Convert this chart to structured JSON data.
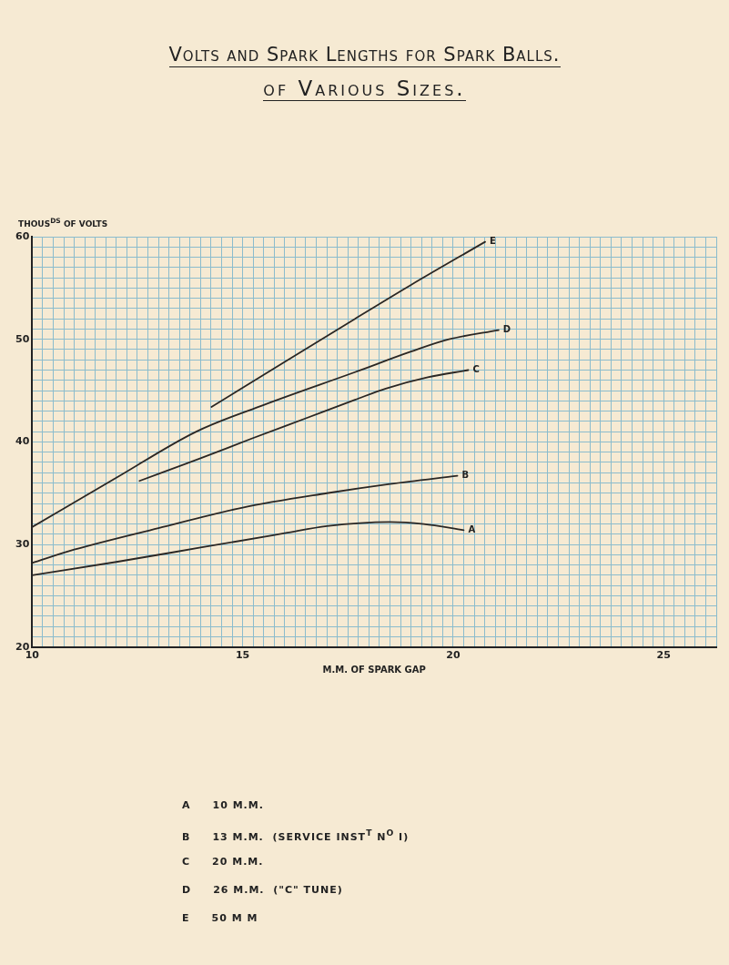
{
  "chart_data": {
    "type": "line",
    "title": "Volts and Spark Lengths for Spark Balls.",
    "subtitle": "of Various Sizes.",
    "xlabel": "M.M. OF SPARK GAP",
    "ylabel": "THOUS$^{DS}$ OF VOLTS",
    "series": [
      {
        "name": "A",
        "color": "#2b2724",
        "x": [
          10,
          12,
          14,
          16,
          17,
          18.5,
          19.3,
          20.25
        ],
        "values": [
          27.0,
          28.3,
          29.7,
          31.1,
          31.8,
          32.2,
          32.0,
          31.4
        ]
      },
      {
        "name": "B",
        "color": "#2b2724",
        "x": [
          10,
          11,
          13,
          15,
          17,
          18.5,
          20.1
        ],
        "values": [
          28.2,
          29.5,
          31.6,
          33.6,
          35.0,
          35.9,
          36.7
        ]
      },
      {
        "name": "C",
        "color": "#2b2724",
        "x": [
          12.55,
          14,
          15.2,
          16.5,
          17.67,
          18.4,
          19.4,
          20.36
        ],
        "values": [
          36.2,
          38.4,
          40.3,
          42.3,
          44.1,
          45.2,
          46.3,
          47.0
        ]
      },
      {
        "name": "D",
        "color": "#2b2724",
        "x": [
          10,
          12,
          13.9,
          15.5,
          17.67,
          19,
          19.9,
          21.08
        ],
        "values": [
          31.7,
          36.5,
          41.0,
          43.6,
          46.8,
          48.8,
          50.0,
          50.9
        ]
      },
      {
        "name": "E",
        "color": "#2b2724",
        "x": [
          14.26,
          16,
          17.67,
          19,
          20.76
        ],
        "values": [
          43.4,
          47.8,
          52.0,
          55.3,
          59.5
        ]
      }
    ],
    "annotations": [
      "A  10 M.M.",
      "B  13 M.M.  (SERVICE INST$^{T}$ N$^{O}$ I)",
      "C  20 M.M.",
      "D  26 M.M.  (\"C\" TUNE)",
      "E  50 M M"
    ],
    "xlim": [
      10,
      26.25
    ],
    "ylim": [
      20,
      60
    ],
    "xticks": [
      10,
      {
        "value": 10.25,
        "label": null
      },
      {
        "value": 10.5,
        "label": null
      },
      {
        "value": 10.75,
        "label": null
      },
      {
        "value": 11,
        "label": null
      },
      {
        "value": 11.25,
        "label": null
      },
      {
        "value": 11.5,
        "label": null
      },
      {
        "value": 11.75,
        "label": null
      },
      {
        "value": 12,
        "label": null
      },
      {
        "value": 12.25,
        "label": null
      },
      {
        "value": 12.5,
        "label": null
      },
      {
        "value": 12.75,
        "label": null
      },
      {
        "value": 13,
        "label": null
      },
      {
        "value": 13.25,
        "label": null
      },
      {
        "value": 13.5,
        "label": null
      },
      {
        "value": 13.75,
        "label": null
      },
      {
        "value": 14,
        "label": null
      },
      {
        "value": 14.25,
        "label": null
      },
      {
        "value": 14.5,
        "label": null
      },
      {
        "value": 14.75,
        "label": null
      },
      15,
      {
        "value": 15.25,
        "label": null
      },
      {
        "value": 15.5,
        "label": null
      },
      {
        "value": 15.75,
        "label": null
      },
      {
        "value": 16,
        "label": null
      },
      {
        "value": 16.25,
        "label": null
      },
      {
        "value": 16.5,
        "label": null
      },
      {
        "value": 16.75,
        "label": null
      },
      {
        "value": 17,
        "label": null
      },
      {
        "value": 17.25,
        "label": null
      },
      {
        "value": 17.5,
        "label": null
      },
      {
        "value": 17.75,
        "label": null
      },
      {
        "value": 18,
        "label": null
      },
      {
        "value": 18.25,
        "label": null
      },
      {
        "value": 18.5,
        "label": null
      },
      {
        "value": 18.75,
        "label": null
      },
      {
        "value": 19,
        "label": null
      },
      {
        "value": 19.25,
        "label": null
      },
      {
        "value": 19.5,
        "label": null
      },
      {
        "value": 19.75,
        "label": null
      },
      20,
      {
        "value": 20.25,
        "label": null
      },
      {
        "value": 20.5,
        "label": null
      },
      {
        "value": 20.75,
        "label": null
      },
      {
        "value": 21,
        "label": null
      },
      {
        "value": 21.25,
        "label": null
      },
      {
        "value": 21.5,
        "label": null
      },
      {
        "value": 21.75,
        "label": null
      },
      {
        "value": 22,
        "label": null
      },
      {
        "value": 22.25,
        "label": null
      },
      {
        "value": 22.5,
        "label": null
      },
      {
        "value": 22.75,
        "label": null
      },
      {
        "value": 23,
        "label": null
      },
      {
        "value": 23.25,
        "label": null
      },
      {
        "value": 23.5,
        "label": null
      },
      {
        "value": 23.75,
        "label": null
      },
      {
        "value": 24,
        "label": null
      },
      {
        "value": 24.25,
        "label": null
      },
      {
        "value": 24.5,
        "label": null
      },
      {
        "value": 24.75,
        "label": null
      },
      25,
      {
        "value": 25.25,
        "label": null
      },
      {
        "value": 25.5,
        "label": null
      },
      {
        "value": 25.75,
        "label": null
      },
      {
        "value": 26,
        "label": null
      },
      {
        "value": 26.25,
        "label": null
      }
    ],
    "yticks": [
      20,
      {
        "value": 21,
        "label": null
      },
      {
        "value": 22,
        "label": null
      },
      {
        "value": 23,
        "label": null
      },
      {
        "value": 24,
        "label": null
      },
      {
        "value": 25,
        "label": null
      },
      {
        "value": 26,
        "label": null
      },
      {
        "value": 27,
        "label": null
      },
      {
        "value": 28,
        "label": null
      },
      {
        "value": 29,
        "label": null
      },
      30,
      {
        "value": 31,
        "label": null
      },
      {
        "value": 32,
        "label": null
      },
      {
        "value": 33,
        "label": null
      },
      {
        "value": 34,
        "label": null
      },
      {
        "value": 35,
        "label": null
      },
      {
        "value": 36,
        "label": null
      },
      {
        "value": 37,
        "label": null
      },
      {
        "value": 38,
        "label": null
      },
      {
        "value": 39,
        "label": null
      },
      40,
      {
        "value": 41,
        "label": null
      },
      {
        "value": 42,
        "label": null
      },
      {
        "value": 43,
        "label": null
      },
      {
        "value": 44,
        "label": null
      },
      {
        "value": 45,
        "label": null
      },
      {
        "value": 46,
        "label": null
      },
      {
        "value": 47,
        "label": null
      },
      {
        "value": 48,
        "label": null
      },
      {
        "value": 49,
        "label": null
      },
      50,
      {
        "value": 51,
        "label": null
      },
      {
        "value": 52,
        "label": null
      },
      {
        "value": 53,
        "label": null
      },
      {
        "value": 54,
        "label": null
      },
      {
        "value": 55,
        "label": null
      },
      {
        "value": 56,
        "label": null
      },
      {
        "value": 57,
        "label": null
      },
      {
        "value": 58,
        "label": null
      },
      {
        "value": 59,
        "label": null
      },
      60
    ],
    "grid": true,
    "legend": false,
    "marker": "none",
    "line_style": "solid"
  }
}
